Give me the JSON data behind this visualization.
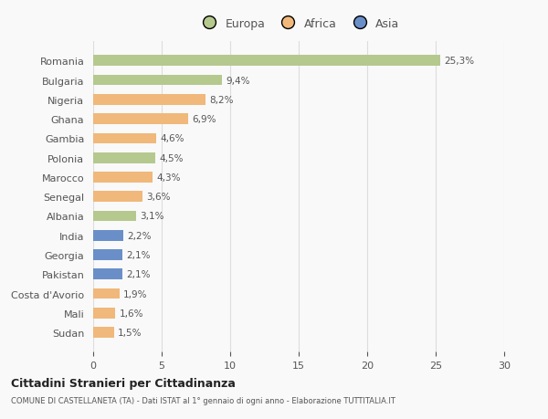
{
  "categories": [
    "Romania",
    "Bulgaria",
    "Nigeria",
    "Ghana",
    "Gambia",
    "Polonia",
    "Marocco",
    "Senegal",
    "Albania",
    "India",
    "Georgia",
    "Pakistan",
    "Costa d'Avorio",
    "Mali",
    "Sudan"
  ],
  "values": [
    25.3,
    9.4,
    8.2,
    6.9,
    4.6,
    4.5,
    4.3,
    3.6,
    3.1,
    2.2,
    2.1,
    2.1,
    1.9,
    1.6,
    1.5
  ],
  "labels": [
    "25,3%",
    "9,4%",
    "8,2%",
    "6,9%",
    "4,6%",
    "4,5%",
    "4,3%",
    "3,6%",
    "3,1%",
    "2,2%",
    "2,1%",
    "2,1%",
    "1,9%",
    "1,6%",
    "1,5%"
  ],
  "continent": [
    "Europa",
    "Europa",
    "Africa",
    "Africa",
    "Africa",
    "Europa",
    "Africa",
    "Africa",
    "Europa",
    "Asia",
    "Asia",
    "Asia",
    "Africa",
    "Africa",
    "Africa"
  ],
  "colors": {
    "Europa": "#b5c98e",
    "Africa": "#f0b87a",
    "Asia": "#6a8fc8"
  },
  "xlim": [
    0,
    30
  ],
  "xticks": [
    0,
    5,
    10,
    15,
    20,
    25,
    30
  ],
  "title": "Cittadini Stranieri per Cittadinanza",
  "subtitle": "COMUNE DI CASTELLANETA (TA) - Dati ISTAT al 1° gennaio di ogni anno - Elaborazione TUTTITALIA.IT",
  "background_color": "#f9f9f9",
  "grid_color": "#dddddd",
  "text_color": "#555555",
  "bar_height": 0.55
}
